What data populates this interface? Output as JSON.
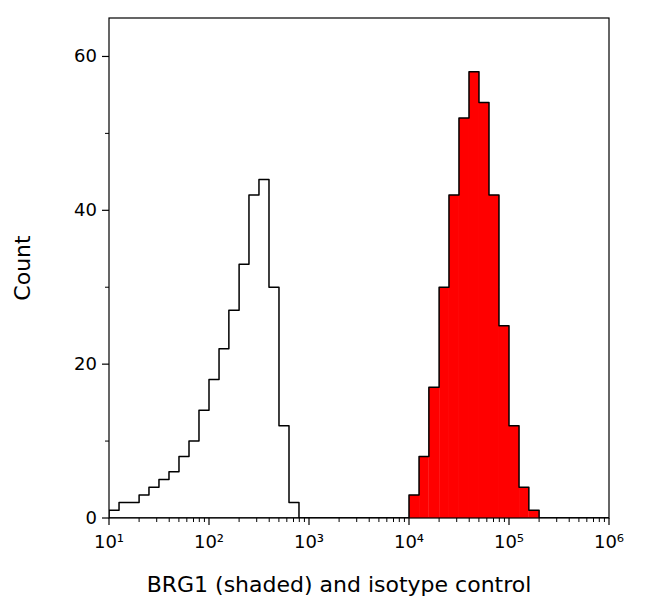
{
  "chart_data": {
    "type": "histogram",
    "x_label": "BRG1 (shaded) and isotype control",
    "y_label": "Count",
    "log": "x",
    "xlim": [
      10,
      1000000
    ],
    "ylim": [
      0,
      65
    ],
    "xticks": [
      {
        "value": 10,
        "label": "10¹"
      },
      {
        "value": 100,
        "label": "10²"
      },
      {
        "value": 1000,
        "label": "10³"
      },
      {
        "value": 10000,
        "label": "10⁴"
      },
      {
        "value": 100000,
        "label": "10⁵"
      },
      {
        "value": 1000000,
        "label": "10⁶"
      }
    ],
    "yticks": [
      0,
      20,
      40,
      60
    ],
    "bins": [
      10,
      12.6,
      15.8,
      20,
      25.1,
      31.6,
      39.8,
      50.1,
      63.1,
      79.4,
      100,
      126,
      158,
      200,
      251,
      316,
      398,
      501,
      631,
      794,
      1000,
      1260,
      1580,
      2000,
      2510,
      3160,
      3980,
      5010,
      6310,
      7940,
      10000,
      12600,
      15800,
      20000,
      25100,
      31600,
      39800,
      50100,
      63100,
      79400,
      100000,
      126000,
      158000,
      200000,
      251000,
      316000,
      398000,
      501000,
      631000,
      794000,
      1000000
    ],
    "series": [
      {
        "type": "step",
        "color": "#000000",
        "values": [
          1,
          2,
          2,
          3,
          4,
          5,
          6,
          8,
          10,
          14,
          18,
          22,
          27,
          33,
          42,
          44,
          30,
          12,
          2,
          0,
          0,
          0,
          0,
          0,
          0,
          0,
          0,
          0,
          0,
          0,
          0,
          0,
          0,
          0,
          0,
          0,
          0,
          0,
          0,
          0,
          0,
          0,
          0,
          0,
          0,
          0,
          0,
          0,
          0,
          0
        ]
      },
      {
        "type": "histogram",
        "color": "#ff0000",
        "values": [
          0,
          0,
          0,
          0,
          0,
          0,
          0,
          0,
          0,
          0,
          0,
          0,
          0,
          0,
          0,
          0,
          0,
          0,
          0,
          0,
          0,
          0,
          0,
          0,
          0,
          0,
          0,
          0,
          0,
          0,
          3,
          8,
          17,
          30,
          42,
          52,
          58,
          54,
          42,
          25,
          12,
          4,
          1,
          0,
          0,
          0,
          0,
          0,
          0,
          0
        ]
      }
    ]
  }
}
